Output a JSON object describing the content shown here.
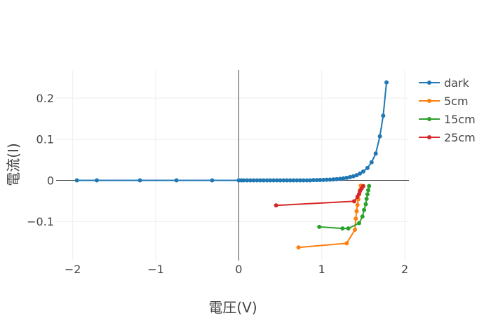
{
  "chart_data": {
    "type": "line",
    "title": "",
    "xlabel": "電圧(V)",
    "ylabel": "電流(I)",
    "xlim": [
      -2.2,
      2.05
    ],
    "ylim": [
      -0.195,
      0.268
    ],
    "x_ticks": [
      -2,
      -1,
      0,
      1,
      2
    ],
    "x_tick_labels": [
      "−2",
      "−1",
      "0",
      "1",
      "2"
    ],
    "y_ticks": [
      -0.1,
      0,
      0.1,
      0.2
    ],
    "y_tick_labels": [
      "−0.1",
      "0",
      "0.1",
      "0.2"
    ],
    "grid": true,
    "legend_position": "top-right",
    "series": [
      {
        "name": "dark",
        "color": "#1f77b4",
        "x": [
          -1.95,
          -1.71,
          -1.19,
          -0.75,
          -0.32,
          0.0,
          0.03,
          0.06,
          0.1,
          0.14,
          0.18,
          0.22,
          0.26,
          0.3,
          0.34,
          0.38,
          0.42,
          0.46,
          0.5,
          0.54,
          0.58,
          0.62,
          0.66,
          0.7,
          0.74,
          0.78,
          0.82,
          0.86,
          0.9,
          0.94,
          0.98,
          1.02,
          1.06,
          1.1,
          1.14,
          1.18,
          1.22,
          1.26,
          1.3,
          1.34,
          1.38,
          1.42,
          1.46,
          1.5,
          1.55,
          1.6,
          1.65,
          1.7,
          1.74,
          1.78
        ],
        "y": [
          0.0,
          0.0,
          0.0,
          0.0,
          0.0,
          0.0,
          0.0,
          0.0,
          0.0,
          0.0,
          0.0,
          0.0,
          0.0,
          0.0,
          0.0,
          0.0,
          0.0,
          0.0,
          0.0,
          0.0,
          0.0,
          0.0,
          0.0,
          0.0,
          0.0,
          0.0,
          0.0,
          0.0,
          0.0005,
          0.0006,
          0.0008,
          0.001,
          0.0013,
          0.0017,
          0.0022,
          0.0028,
          0.0036,
          0.0047,
          0.006,
          0.0077,
          0.0098,
          0.0125,
          0.0165,
          0.0215,
          0.03,
          0.044,
          0.065,
          0.107,
          0.157,
          0.238
        ]
      },
      {
        "name": "5cm",
        "color": "#ff7f0e",
        "x": [
          0.72,
          1.3,
          1.4,
          1.41,
          1.42,
          1.43,
          1.44,
          1.45,
          1.46,
          1.47
        ],
        "y": [
          -0.163,
          -0.153,
          -0.12,
          -0.093,
          -0.075,
          -0.06,
          -0.046,
          -0.034,
          -0.024,
          -0.013
        ]
      },
      {
        "name": "15cm",
        "color": "#2ca02c",
        "x": [
          0.97,
          1.25,
          1.32,
          1.45,
          1.49,
          1.51,
          1.53,
          1.54,
          1.55,
          1.56,
          1.57
        ],
        "y": [
          -0.113,
          -0.117,
          -0.117,
          -0.104,
          -0.088,
          -0.072,
          -0.058,
          -0.045,
          -0.034,
          -0.024,
          -0.014
        ]
      },
      {
        "name": "25cm",
        "color": "#d62728",
        "x": [
          0.45,
          1.39,
          1.43,
          1.45,
          1.46,
          1.48,
          1.5
        ],
        "y": [
          -0.061,
          -0.051,
          -0.04,
          -0.033,
          -0.026,
          -0.02,
          -0.014
        ]
      }
    ]
  }
}
